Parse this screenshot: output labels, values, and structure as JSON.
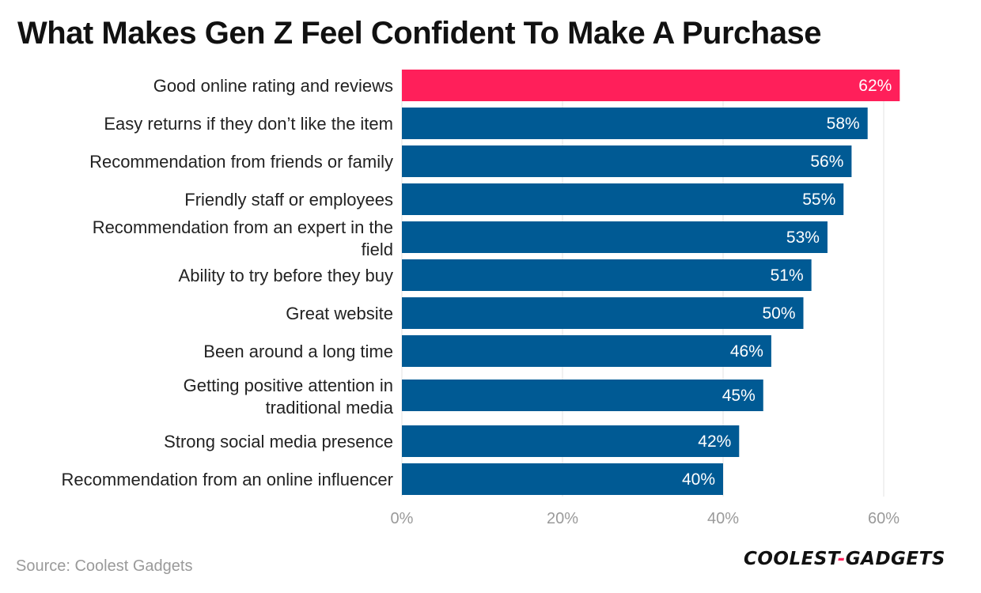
{
  "title": "What Makes Gen Z Feel Confident To Make A Purchase",
  "source": "Source: Coolest Gadgets",
  "logo": {
    "part1": "COOLEST",
    "sep": "-",
    "part2": "GADGETS"
  },
  "colors": {
    "bar": "#005a94",
    "highlight": "#ff1f5a",
    "grid": "#e3e3e3",
    "label": "#222222",
    "tick": "#9a9a9a"
  },
  "chart_data": {
    "type": "bar",
    "orientation": "horizontal",
    "title": "What Makes Gen Z Feel Confident To Make A Purchase",
    "categories": [
      "Good online rating and reviews",
      "Easy returns if they don’t like the item",
      "Recommendation from friends or family",
      "Friendly staff or employees",
      "Recommendation from an expert in the field",
      "Ability to try before they buy",
      "Great website",
      "Been around a long time",
      "Getting positive attention in traditional media",
      "Strong social media presence",
      "Recommendation from an online influencer"
    ],
    "values": [
      62,
      58,
      56,
      55,
      53,
      51,
      50,
      46,
      45,
      42,
      40
    ],
    "value_labels": [
      "62%",
      "58%",
      "56%",
      "55%",
      "53%",
      "51%",
      "50%",
      "46%",
      "45%",
      "42%",
      "40%"
    ],
    "highlight_index": 0,
    "xlim": [
      0,
      62
    ],
    "xticks": [
      0,
      20,
      40,
      60
    ],
    "xtick_labels": [
      "0%",
      "20%",
      "40%",
      "60%"
    ],
    "grid": true,
    "xlabel": "",
    "ylabel": ""
  }
}
